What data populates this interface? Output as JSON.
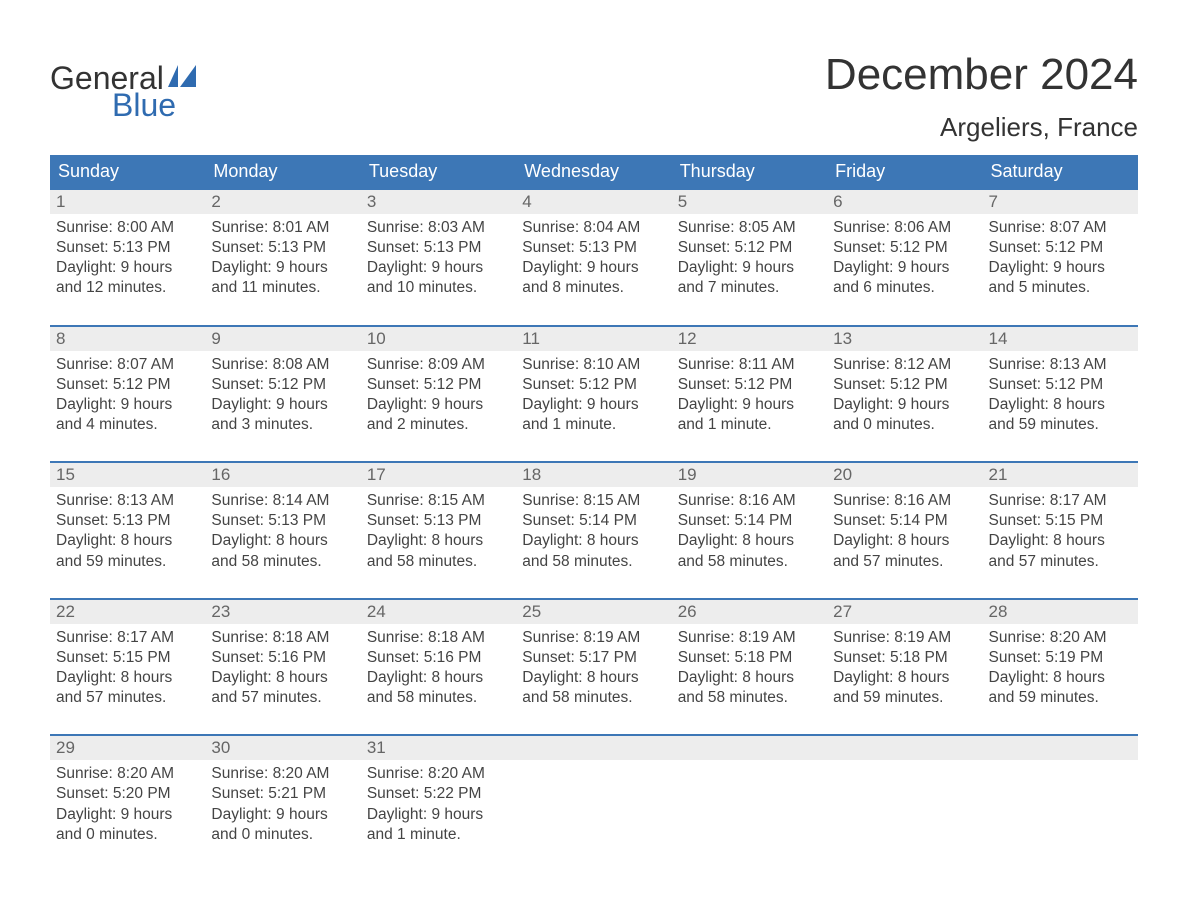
{
  "logo": {
    "text1": "General",
    "text2": "Blue",
    "icon_color": "#2f6bb0"
  },
  "title": "December 2024",
  "location": "Argeliers, France",
  "colors": {
    "header_bg": "#3d77b6",
    "header_text": "#ffffff",
    "daynum_bg": "#ededed",
    "daynum_text": "#666666",
    "body_text": "#444444",
    "border": "#3d77b6",
    "page_bg": "#ffffff"
  },
  "weekdays": [
    "Sunday",
    "Monday",
    "Tuesday",
    "Wednesday",
    "Thursday",
    "Friday",
    "Saturday"
  ],
  "weeks": [
    [
      {
        "n": "1",
        "sunrise": "8:00 AM",
        "sunset": "5:13 PM",
        "dl1": "Daylight: 9 hours",
        "dl2": "and 12 minutes."
      },
      {
        "n": "2",
        "sunrise": "8:01 AM",
        "sunset": "5:13 PM",
        "dl1": "Daylight: 9 hours",
        "dl2": "and 11 minutes."
      },
      {
        "n": "3",
        "sunrise": "8:03 AM",
        "sunset": "5:13 PM",
        "dl1": "Daylight: 9 hours",
        "dl2": "and 10 minutes."
      },
      {
        "n": "4",
        "sunrise": "8:04 AM",
        "sunset": "5:13 PM",
        "dl1": "Daylight: 9 hours",
        "dl2": "and 8 minutes."
      },
      {
        "n": "5",
        "sunrise": "8:05 AM",
        "sunset": "5:12 PM",
        "dl1": "Daylight: 9 hours",
        "dl2": "and 7 minutes."
      },
      {
        "n": "6",
        "sunrise": "8:06 AM",
        "sunset": "5:12 PM",
        "dl1": "Daylight: 9 hours",
        "dl2": "and 6 minutes."
      },
      {
        "n": "7",
        "sunrise": "8:07 AM",
        "sunset": "5:12 PM",
        "dl1": "Daylight: 9 hours",
        "dl2": "and 5 minutes."
      }
    ],
    [
      {
        "n": "8",
        "sunrise": "8:07 AM",
        "sunset": "5:12 PM",
        "dl1": "Daylight: 9 hours",
        "dl2": "and 4 minutes."
      },
      {
        "n": "9",
        "sunrise": "8:08 AM",
        "sunset": "5:12 PM",
        "dl1": "Daylight: 9 hours",
        "dl2": "and 3 minutes."
      },
      {
        "n": "10",
        "sunrise": "8:09 AM",
        "sunset": "5:12 PM",
        "dl1": "Daylight: 9 hours",
        "dl2": "and 2 minutes."
      },
      {
        "n": "11",
        "sunrise": "8:10 AM",
        "sunset": "5:12 PM",
        "dl1": "Daylight: 9 hours",
        "dl2": "and 1 minute."
      },
      {
        "n": "12",
        "sunrise": "8:11 AM",
        "sunset": "5:12 PM",
        "dl1": "Daylight: 9 hours",
        "dl2": "and 1 minute."
      },
      {
        "n": "13",
        "sunrise": "8:12 AM",
        "sunset": "5:12 PM",
        "dl1": "Daylight: 9 hours",
        "dl2": "and 0 minutes."
      },
      {
        "n": "14",
        "sunrise": "8:13 AM",
        "sunset": "5:12 PM",
        "dl1": "Daylight: 8 hours",
        "dl2": "and 59 minutes."
      }
    ],
    [
      {
        "n": "15",
        "sunrise": "8:13 AM",
        "sunset": "5:13 PM",
        "dl1": "Daylight: 8 hours",
        "dl2": "and 59 minutes."
      },
      {
        "n": "16",
        "sunrise": "8:14 AM",
        "sunset": "5:13 PM",
        "dl1": "Daylight: 8 hours",
        "dl2": "and 58 minutes."
      },
      {
        "n": "17",
        "sunrise": "8:15 AM",
        "sunset": "5:13 PM",
        "dl1": "Daylight: 8 hours",
        "dl2": "and 58 minutes."
      },
      {
        "n": "18",
        "sunrise": "8:15 AM",
        "sunset": "5:14 PM",
        "dl1": "Daylight: 8 hours",
        "dl2": "and 58 minutes."
      },
      {
        "n": "19",
        "sunrise": "8:16 AM",
        "sunset": "5:14 PM",
        "dl1": "Daylight: 8 hours",
        "dl2": "and 58 minutes."
      },
      {
        "n": "20",
        "sunrise": "8:16 AM",
        "sunset": "5:14 PM",
        "dl1": "Daylight: 8 hours",
        "dl2": "and 57 minutes."
      },
      {
        "n": "21",
        "sunrise": "8:17 AM",
        "sunset": "5:15 PM",
        "dl1": "Daylight: 8 hours",
        "dl2": "and 57 minutes."
      }
    ],
    [
      {
        "n": "22",
        "sunrise": "8:17 AM",
        "sunset": "5:15 PM",
        "dl1": "Daylight: 8 hours",
        "dl2": "and 57 minutes."
      },
      {
        "n": "23",
        "sunrise": "8:18 AM",
        "sunset": "5:16 PM",
        "dl1": "Daylight: 8 hours",
        "dl2": "and 57 minutes."
      },
      {
        "n": "24",
        "sunrise": "8:18 AM",
        "sunset": "5:16 PM",
        "dl1": "Daylight: 8 hours",
        "dl2": "and 58 minutes."
      },
      {
        "n": "25",
        "sunrise": "8:19 AM",
        "sunset": "5:17 PM",
        "dl1": "Daylight: 8 hours",
        "dl2": "and 58 minutes."
      },
      {
        "n": "26",
        "sunrise": "8:19 AM",
        "sunset": "5:18 PM",
        "dl1": "Daylight: 8 hours",
        "dl2": "and 58 minutes."
      },
      {
        "n": "27",
        "sunrise": "8:19 AM",
        "sunset": "5:18 PM",
        "dl1": "Daylight: 8 hours",
        "dl2": "and 59 minutes."
      },
      {
        "n": "28",
        "sunrise": "8:20 AM",
        "sunset": "5:19 PM",
        "dl1": "Daylight: 8 hours",
        "dl2": "and 59 minutes."
      }
    ],
    [
      {
        "n": "29",
        "sunrise": "8:20 AM",
        "sunset": "5:20 PM",
        "dl1": "Daylight: 9 hours",
        "dl2": "and 0 minutes."
      },
      {
        "n": "30",
        "sunrise": "8:20 AM",
        "sunset": "5:21 PM",
        "dl1": "Daylight: 9 hours",
        "dl2": "and 0 minutes."
      },
      {
        "n": "31",
        "sunrise": "8:20 AM",
        "sunset": "5:22 PM",
        "dl1": "Daylight: 9 hours",
        "dl2": "and 1 minute."
      },
      {
        "empty": true
      },
      {
        "empty": true
      },
      {
        "empty": true
      },
      {
        "empty": true
      }
    ]
  ],
  "labels": {
    "sunrise": "Sunrise: ",
    "sunset": "Sunset: "
  }
}
